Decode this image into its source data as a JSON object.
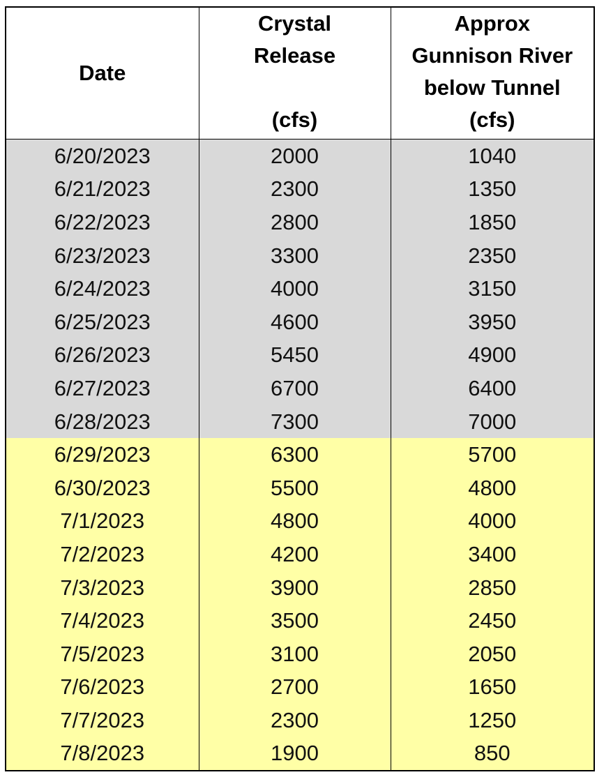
{
  "headers": {
    "date": "Date",
    "crystal": {
      "line1": "Crystal",
      "line2": "Release",
      "unit": "(cfs)"
    },
    "gunnison": {
      "line1": "Approx",
      "line2": "Gunnison River",
      "line3": "below Tunnel",
      "unit": "(cfs)"
    }
  },
  "colors": {
    "grey_rows": "#d9d9d9",
    "yellow_rows": "#ffffa6"
  },
  "rows": [
    {
      "date": "6/20/2023",
      "crystal": "2000",
      "gunnison": "1040",
      "shade": "grey"
    },
    {
      "date": "6/21/2023",
      "crystal": "2300",
      "gunnison": "1350",
      "shade": "grey"
    },
    {
      "date": "6/22/2023",
      "crystal": "2800",
      "gunnison": "1850",
      "shade": "grey"
    },
    {
      "date": "6/23/2023",
      "crystal": "3300",
      "gunnison": "2350",
      "shade": "grey"
    },
    {
      "date": "6/24/2023",
      "crystal": "4000",
      "gunnison": "3150",
      "shade": "grey"
    },
    {
      "date": "6/25/2023",
      "crystal": "4600",
      "gunnison": "3950",
      "shade": "grey"
    },
    {
      "date": "6/26/2023",
      "crystal": "5450",
      "gunnison": "4900",
      "shade": "grey"
    },
    {
      "date": "6/27/2023",
      "crystal": "6700",
      "gunnison": "6400",
      "shade": "grey"
    },
    {
      "date": "6/28/2023",
      "crystal": "7300",
      "gunnison": "7000",
      "shade": "grey"
    },
    {
      "date": "6/29/2023",
      "crystal": "6300",
      "gunnison": "5700",
      "shade": "yellow"
    },
    {
      "date": "6/30/2023",
      "crystal": "5500",
      "gunnison": "4800",
      "shade": "yellow"
    },
    {
      "date": "7/1/2023",
      "crystal": "4800",
      "gunnison": "4000",
      "shade": "yellow"
    },
    {
      "date": "7/2/2023",
      "crystal": "4200",
      "gunnison": "3400",
      "shade": "yellow"
    },
    {
      "date": "7/3/2023",
      "crystal": "3900",
      "gunnison": "2850",
      "shade": "yellow"
    },
    {
      "date": "7/4/2023",
      "crystal": "3500",
      "gunnison": "2450",
      "shade": "yellow"
    },
    {
      "date": "7/5/2023",
      "crystal": "3100",
      "gunnison": "2050",
      "shade": "yellow"
    },
    {
      "date": "7/6/2023",
      "crystal": "2700",
      "gunnison": "1650",
      "shade": "yellow"
    },
    {
      "date": "7/7/2023",
      "crystal": "2300",
      "gunnison": "1250",
      "shade": "yellow"
    },
    {
      "date": "7/8/2023",
      "crystal": "1900",
      "gunnison": "850",
      "shade": "yellow"
    }
  ]
}
